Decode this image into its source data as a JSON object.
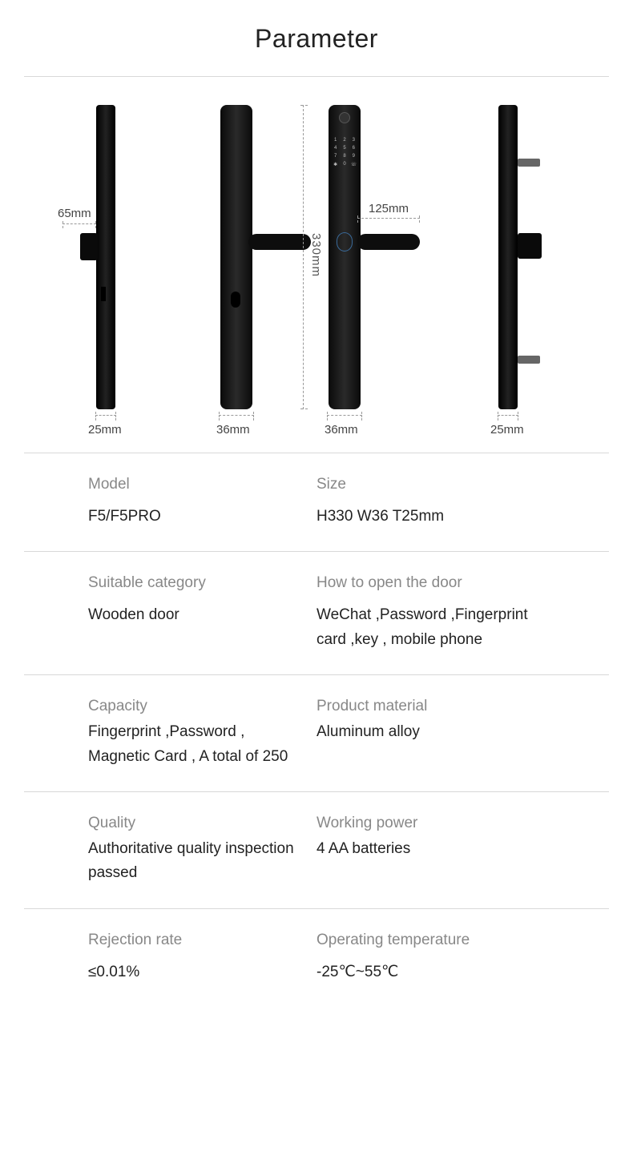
{
  "title": "Parameter",
  "diagram": {
    "height_label": "330mm",
    "handle_front_label": "125mm",
    "handle_side_label": "65mm",
    "widths": [
      "25mm",
      "36mm",
      "36mm",
      "25mm"
    ],
    "keypad_keys": [
      "1",
      "2",
      "3",
      "4",
      "5",
      "6",
      "7",
      "8",
      "9",
      "✱",
      "0",
      "☏"
    ],
    "colors": {
      "lock_body": "#111111",
      "dimension_line": "#999999",
      "label_text": "#444444",
      "background": "#ffffff",
      "divider": "#d8d8d8"
    }
  },
  "specs": [
    {
      "left": {
        "label": "Model",
        "value": "F5/F5PRO"
      },
      "right": {
        "label": "Size",
        "value": "H330 W36 T25mm"
      },
      "tight": false
    },
    {
      "left": {
        "label": "Suitable category",
        "value": "Wooden door"
      },
      "right": {
        "label": "How to open the door",
        "value": "WeChat ,Password ,Fingerprint card ,key , mobile phone"
      },
      "tight": false
    },
    {
      "left": {
        "label": "Capacity",
        "value": "Fingerprint ,Password , Magnetic Card , A total of 250"
      },
      "right": {
        "label": "Product material",
        "value": " Aluminum alloy"
      },
      "tight": true
    },
    {
      "left": {
        "label": "Quality",
        "value": "Authoritative quality inspection passed"
      },
      "right": {
        "label": "Working power",
        "value": "4 AA batteries"
      },
      "tight": true
    },
    {
      "left": {
        "label": "Rejection rate",
        "value": "≤0.01%"
      },
      "right": {
        "label": "Operating temperature",
        "value": "-25℃~55℃"
      },
      "tight": false
    }
  ]
}
